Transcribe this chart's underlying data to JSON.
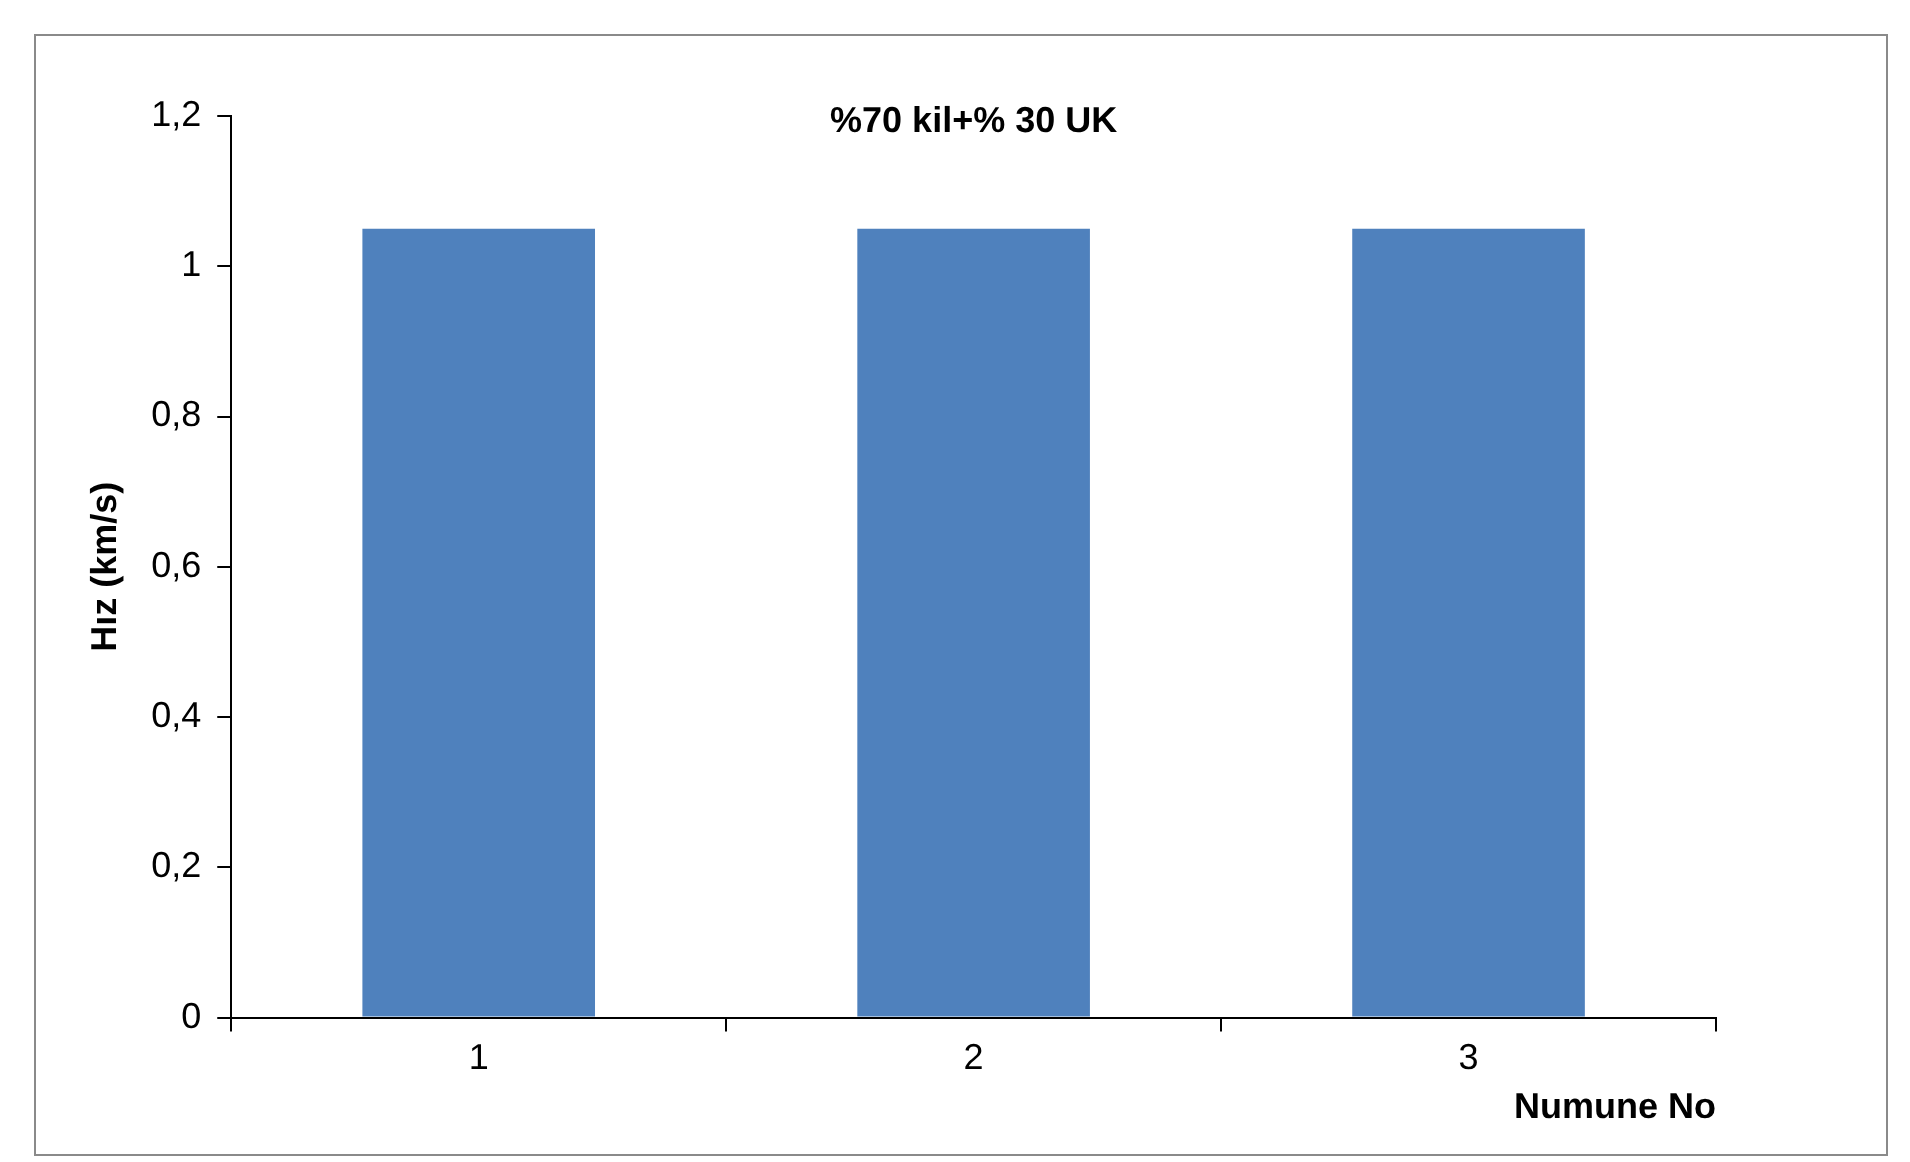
{
  "chart_data": {
    "type": "bar",
    "title": "%70 kil+% 30 UK",
    "xlabel": "Numune No",
    "ylabel": "Hız (km/s)",
    "categories": [
      "1",
      "2",
      "3"
    ],
    "values": [
      1.05,
      1.05,
      1.05
    ],
    "color": "#4f81bd",
    "ylim": [
      0,
      1.2
    ],
    "yticks": [
      0,
      {
        "value": 0.2,
        "label": "0,2"
      },
      {
        "value": 0.4,
        "label": "0,4"
      },
      {
        "value": 0.6,
        "label": "0,6"
      },
      {
        "value": 0.8,
        "label": "0,8"
      },
      1,
      {
        "value": 1.2,
        "label": "1,2"
      }
    ],
    "grid": false,
    "legend": false
  }
}
